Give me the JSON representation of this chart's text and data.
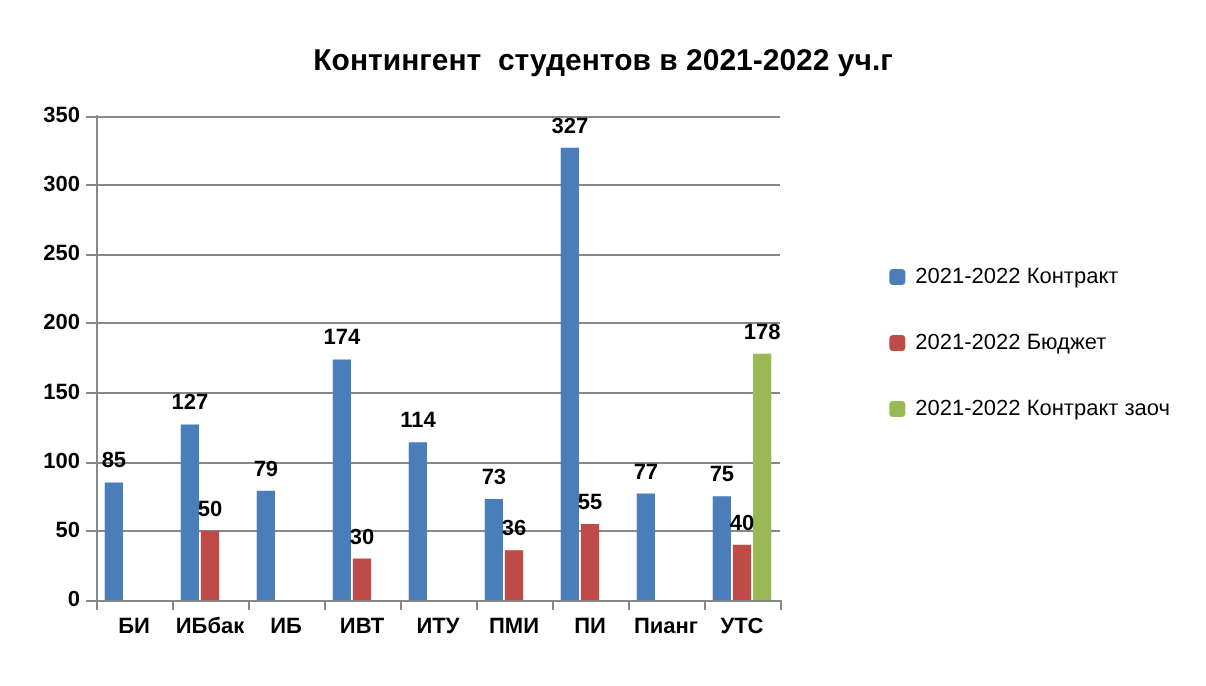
{
  "chart_data": {
    "type": "bar",
    "title": "Контингент  студентов в 2021-2022 уч.г",
    "categories": [
      "БИ",
      "ИБбак",
      "ИБ",
      "ИВТ",
      "ИТУ",
      "ПМИ",
      "ПИ",
      "Пианг",
      "УТС"
    ],
    "series": [
      {
        "name": "2021-2022 Контракт",
        "color": "#4a7ebb",
        "values": [
          85,
          127,
          79,
          174,
          114,
          73,
          327,
          77,
          75
        ]
      },
      {
        "name": "2021-2022 Бюджет",
        "color": "#be4b48",
        "values": [
          null,
          50,
          null,
          30,
          null,
          36,
          55,
          null,
          40
        ]
      },
      {
        "name": "2021-2022 Контракт заоч",
        "color": "#98b954",
        "values": [
          null,
          null,
          null,
          null,
          null,
          null,
          null,
          null,
          178
        ]
      }
    ],
    "ylim": [
      0,
      350
    ],
    "yticks": [
      0,
      50,
      100,
      150,
      200,
      250,
      300,
      350
    ],
    "grid": "y",
    "legend": "right",
    "data_labels": true
  }
}
